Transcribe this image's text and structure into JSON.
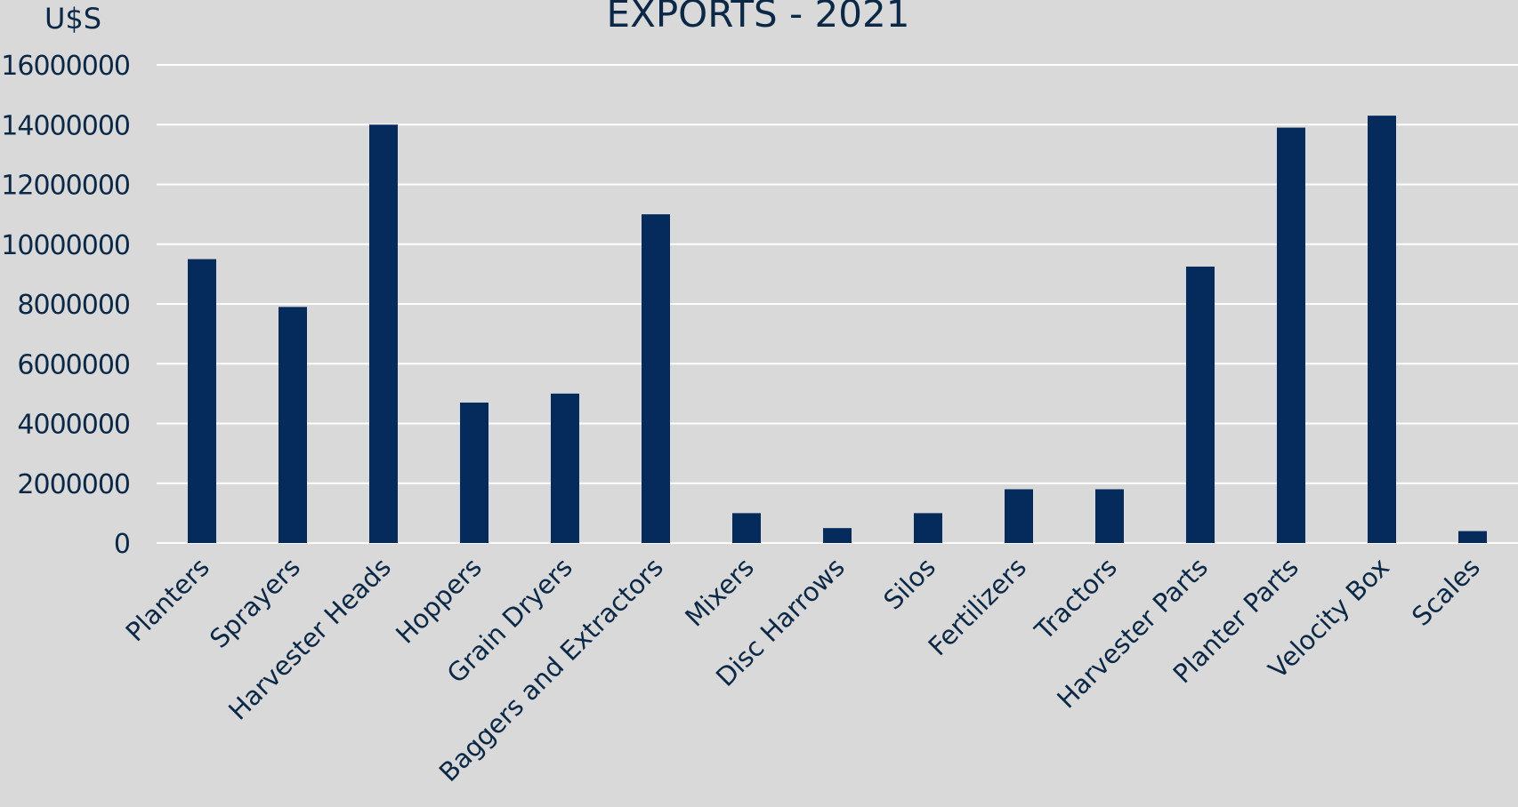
{
  "chart_data": {
    "type": "bar",
    "title": "EXPORTS - 2021",
    "ylabel": "U$S",
    "xlabel": "",
    "ylim": [
      0,
      16000000
    ],
    "yticks": [
      0,
      2000000,
      4000000,
      6000000,
      8000000,
      10000000,
      12000000,
      14000000,
      16000000
    ],
    "ytick_labels": [
      "0",
      "2000000",
      "4000000",
      "6000000",
      "8000000",
      "10000000",
      "12000000",
      "14000000",
      "16000000"
    ],
    "grid": true,
    "categories": [
      "Planters",
      "Sprayers",
      "Harvester Heads",
      "Hoppers",
      "Grain Dryers",
      "Baggers and Extractors",
      "Mixers",
      "Disc Harrows",
      "Silos",
      "Fertilizers",
      "Tractors",
      "Harvester Parts",
      "Planter Parts",
      "Velocity Box",
      "Scales"
    ],
    "values": [
      9500000,
      7900000,
      14000000,
      4700000,
      5000000,
      11000000,
      1000000,
      500000,
      1000000,
      1800000,
      1800000,
      9250000,
      13900000,
      14300000,
      400000
    ],
    "colors": {
      "bar": "#042b5c",
      "text": "#0b2847",
      "grid": "#ffffff",
      "background": "#d9d9d9"
    }
  }
}
